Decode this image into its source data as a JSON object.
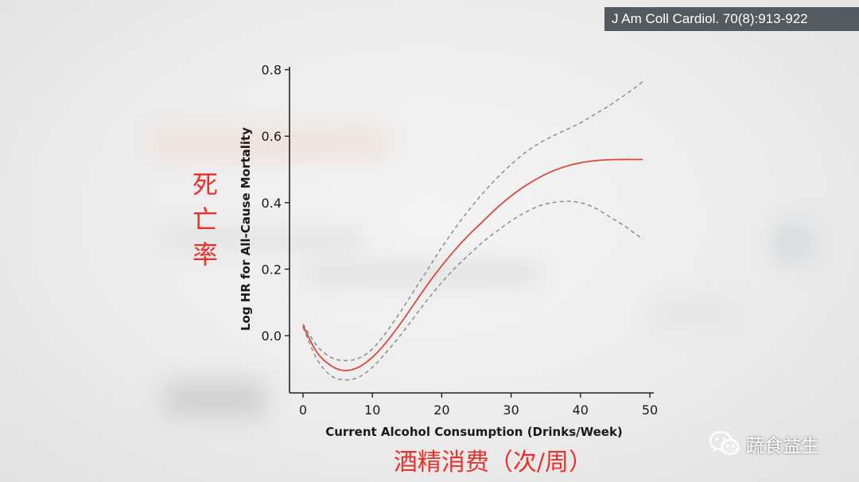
{
  "citation": "J Am Coll Cardiol. 70(8):913-922",
  "annotations": {
    "y_cn": "死亡率",
    "x_cn": "酒精消费（次/周）"
  },
  "watermark": {
    "icon": "wechat-icon",
    "text": "蔬食益生"
  },
  "colors": {
    "estimate_line": "#d9483b",
    "ci_line": "#8c8c8c",
    "annotation_red": "#e8312a"
  },
  "chart_data": {
    "type": "line",
    "title": "",
    "xlabel": "Current Alcohol Consumption (Drinks/Week)",
    "ylabel": "Log HR for All-Cause Mortality",
    "xlim": [
      0,
      50
    ],
    "ylim": [
      -0.15,
      0.8
    ],
    "x_ticks": [
      0,
      10,
      20,
      30,
      40,
      50
    ],
    "y_ticks": [
      0.0,
      0.2,
      0.4,
      0.6,
      0.8
    ],
    "x_tick_labels": [
      "0",
      "10",
      "20",
      "30",
      "40",
      "50"
    ],
    "y_tick_labels": [
      "0.0",
      "0.2",
      "0.4",
      "0.6",
      "0.8"
    ],
    "grid": false,
    "series": [
      {
        "role": "estimate",
        "style": "solid",
        "x": [
          0,
          2,
          4,
          6,
          8,
          10,
          12,
          14,
          16,
          18,
          20,
          22,
          24,
          26,
          28,
          30,
          32,
          34,
          36,
          38,
          40,
          42,
          44,
          46,
          48,
          49
        ],
        "y": [
          0.03,
          -0.05,
          -0.09,
          -0.105,
          -0.095,
          -0.065,
          -0.02,
          0.035,
          0.095,
          0.155,
          0.21,
          0.26,
          0.305,
          0.345,
          0.385,
          0.42,
          0.45,
          0.475,
          0.495,
          0.51,
          0.52,
          0.526,
          0.529,
          0.53,
          0.53,
          0.53
        ]
      },
      {
        "role": "upper_ci",
        "style": "dashed",
        "x": [
          0,
          2,
          4,
          6,
          8,
          10,
          12,
          14,
          16,
          18,
          20,
          22,
          24,
          26,
          28,
          30,
          32,
          34,
          36,
          38,
          40,
          42,
          44,
          46,
          48,
          49
        ],
        "y": [
          0.035,
          -0.03,
          -0.065,
          -0.075,
          -0.068,
          -0.04,
          0.01,
          0.07,
          0.135,
          0.2,
          0.265,
          0.325,
          0.38,
          0.43,
          0.475,
          0.515,
          0.55,
          0.578,
          0.6,
          0.62,
          0.64,
          0.665,
          0.69,
          0.718,
          0.748,
          0.765
        ]
      },
      {
        "role": "lower_ci",
        "style": "dashed",
        "x": [
          0,
          2,
          4,
          6,
          8,
          10,
          12,
          14,
          16,
          18,
          20,
          22,
          24,
          26,
          28,
          30,
          32,
          34,
          36,
          38,
          40,
          42,
          44,
          46,
          48,
          49
        ],
        "y": [
          0.025,
          -0.07,
          -0.12,
          -0.133,
          -0.125,
          -0.095,
          -0.05,
          0.0,
          0.055,
          0.11,
          0.16,
          0.205,
          0.245,
          0.283,
          0.315,
          0.345,
          0.37,
          0.39,
          0.4,
          0.404,
          0.4,
          0.385,
          0.36,
          0.335,
          0.305,
          0.29
        ]
      }
    ]
  }
}
